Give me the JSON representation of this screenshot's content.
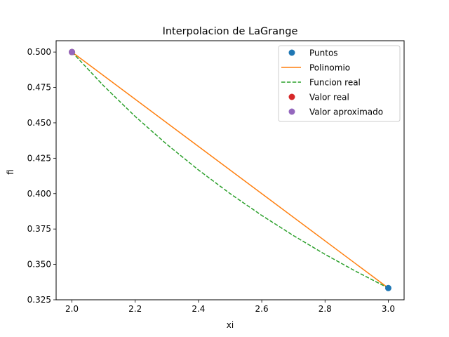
{
  "chart_data": {
    "type": "line",
    "title": "Interpolacion de LaGrange",
    "xlabel": "xi",
    "ylabel": "fi",
    "xlim": [
      1.95,
      3.05
    ],
    "ylim": [
      0.325,
      0.508
    ],
    "xticks": [
      "2.0",
      "2.2",
      "2.4",
      "2.6",
      "2.8",
      "3.0"
    ],
    "yticks": [
      "0.325",
      "0.350",
      "0.375",
      "0.400",
      "0.425",
      "0.450",
      "0.475",
      "0.500"
    ],
    "grid": false,
    "legend_position": "top-right",
    "series": [
      {
        "name": "Puntos",
        "kind": "points",
        "color": "#1f77b4",
        "x": [
          2.0,
          3.0
        ],
        "y": [
          0.5,
          0.3333
        ]
      },
      {
        "name": "Polinomio",
        "kind": "line",
        "style": "solid",
        "color": "#ff7f0e",
        "x": [
          2.0,
          3.0
        ],
        "y": [
          0.5,
          0.3333
        ]
      },
      {
        "name": "Funcion real",
        "kind": "line",
        "style": "dashed",
        "color": "#2ca02c",
        "x": [
          2.0,
          2.1,
          2.2,
          2.3,
          2.4,
          2.5,
          2.6,
          2.7,
          2.8,
          2.9,
          3.0
        ],
        "y": [
          0.5,
          0.4762,
          0.4545,
          0.4348,
          0.4167,
          0.4,
          0.3846,
          0.3704,
          0.3571,
          0.3448,
          0.3333
        ]
      },
      {
        "name": "Valor real",
        "kind": "points",
        "color": "#d62728",
        "x": [
          2.0
        ],
        "y": [
          0.5
        ]
      },
      {
        "name": "Valor aproximado",
        "kind": "points",
        "color": "#9467bd",
        "x": [
          2.0
        ],
        "y": [
          0.5
        ]
      }
    ]
  }
}
